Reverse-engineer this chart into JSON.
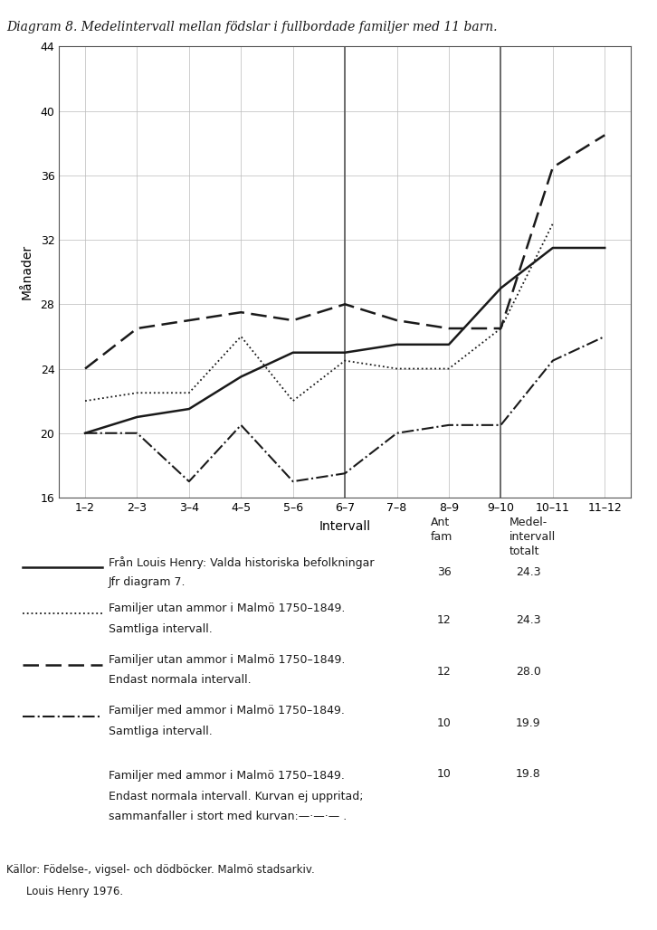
{
  "title": "Diagram 8. Medelintervall mellan födslar i fullbordade familjer med 11 barn.",
  "xlabel": "Intervall",
  "ylabel": "Månader",
  "x_labels": [
    "1–2",
    "2–3",
    "3–4",
    "4–5",
    "5–6",
    "6–7",
    "7–8",
    "8–9",
    "9–10",
    "10–11",
    "11–12"
  ],
  "ylim": [
    16,
    44
  ],
  "yticks": [
    16,
    20,
    24,
    28,
    32,
    36,
    40,
    44
  ],
  "line1_solid": [
    20.0,
    21.0,
    21.5,
    23.5,
    25.0,
    25.0,
    25.5,
    25.5,
    29.0,
    31.5,
    31.5
  ],
  "line2_dotted": [
    22.0,
    22.5,
    22.5,
    26.0,
    22.0,
    24.5,
    24.0,
    24.0,
    26.5,
    33.0,
    null
  ],
  "line3_dashed": [
    24.0,
    26.5,
    27.0,
    27.5,
    27.0,
    28.0,
    27.0,
    26.5,
    26.5,
    36.5,
    38.5
  ],
  "line4_dashdot": [
    20.0,
    20.0,
    17.0,
    20.5,
    17.0,
    17.5,
    20.0,
    20.5,
    20.5,
    24.5,
    26.0
  ],
  "thick_vlines": [
    5,
    8
  ],
  "legend_entries": [
    {
      "style": "solid",
      "text1": "Från Louis Henry: Valda historiska befolkningar",
      "text2": "Jfr diagram 7.",
      "ant_fam": "36",
      "medel": "24.3"
    },
    {
      "style": "dotted",
      "text1": "Familjer utan ammor i Malmö 1750–1849.",
      "text2": "Samtliga intervall.",
      "ant_fam": "12",
      "medel": "24.3"
    },
    {
      "style": "dashed",
      "text1": "Familjer utan ammor i Malmö 1750–1849.",
      "text2": "Endast normala intervall.",
      "ant_fam": "12",
      "medel": "28.0"
    },
    {
      "style": "dashdot",
      "text1": "Familjer med ammor i Malmö 1750–1849.",
      "text2": "Samtliga intervall.",
      "ant_fam": "10",
      "medel": "19.9"
    },
    {
      "style": "none",
      "text1": "Familjer med ammor i Malmö 1750–1849.",
      "text2": "Endast normala intervall. Kurvan ej uppritad;",
      "text3": "sammanfaller i stort med kurvan:—·—·— .",
      "ant_fam": "10",
      "medel": "19.8"
    }
  ],
  "footer_line1": "Källor: Födelse-, vigsel- och dödböcker. Malmö stadsarkiv.",
  "footer_line2": "Louis Henry 1976.",
  "color": "#1a1a1a",
  "bg_color": "#ffffff"
}
